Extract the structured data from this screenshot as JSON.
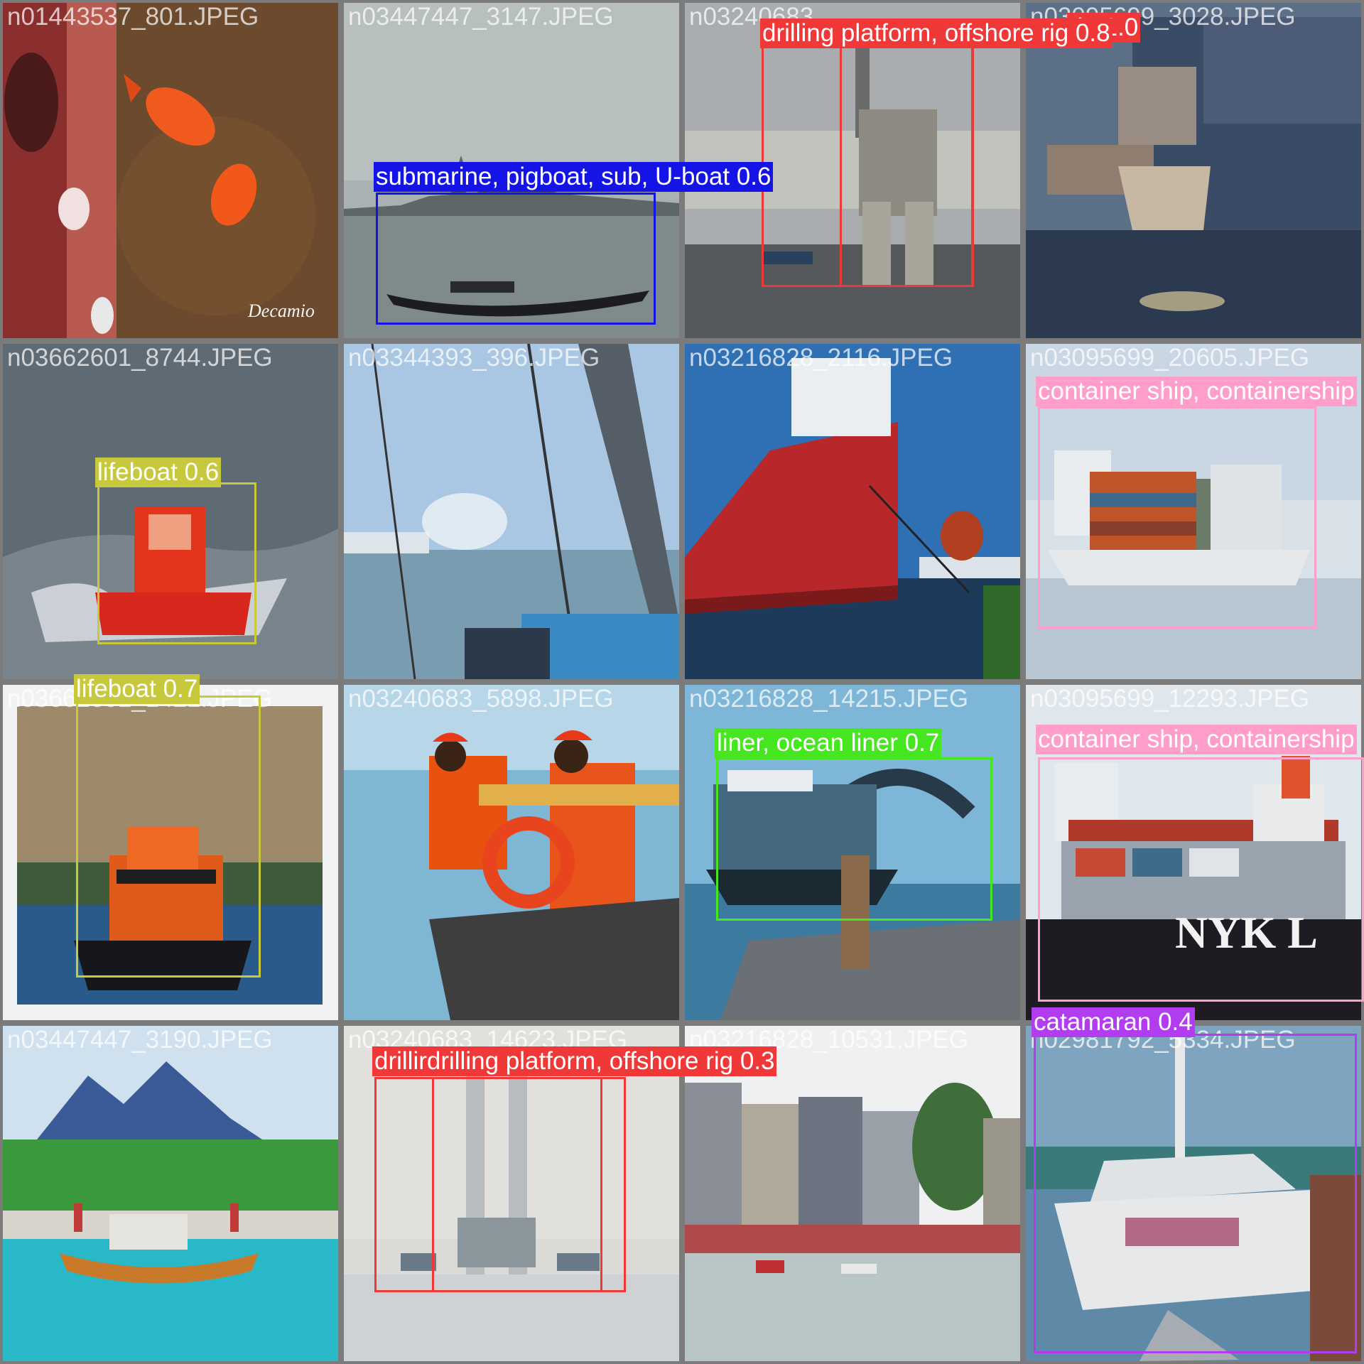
{
  "grid": {
    "tiles": [
      {
        "filename": "n01443537_801.JPEG",
        "watermark": "Decamio"
      },
      {
        "filename": "n03447447_3147.JPEG"
      },
      {
        "filename": "n03240683_..."
      },
      {
        "filename": "n03095699_3028.JPEG"
      },
      {
        "filename": "n03662601_8744.JPEG"
      },
      {
        "filename": "n03344393_396.JPEG"
      },
      {
        "filename": "n03216828_2116.JPEG"
      },
      {
        "filename": "n03095699_20605.JPEG"
      },
      {
        "filename": "n03662601_1421.JPEG"
      },
      {
        "filename": "n03240683_5898.JPEG"
      },
      {
        "filename": "n03216828_14215.JPEG"
      },
      {
        "filename": "n03095699_12293.JPEG",
        "hull_text": "NYK L"
      },
      {
        "filename": "n03447447_3190.JPEG"
      },
      {
        "filename": "n03240683_14623.JPEG"
      },
      {
        "filename": "n03216828_10531.JPEG"
      },
      {
        "filename": "n02981792_5334.JPEG"
      }
    ]
  },
  "detections": {
    "submarine": {
      "label": "submarine, pigboat, sub, U-boat 0.6",
      "color": "#1414e6"
    },
    "rig_a": {
      "label": "drilling platform, offshore rig 0.8",
      "color": "#f03838"
    },
    "rig_b": {
      "label": "rig 1.0",
      "color": "#f03838"
    },
    "lifeboat_a": {
      "label": "lifeboat 0.6",
      "color": "#c8c83c"
    },
    "container_a": {
      "label": "container ship, containership",
      "color": "#ff9ecb"
    },
    "lifeboat_b": {
      "label": "lifeboat 0.7",
      "color": "#c8c83c"
    },
    "liner": {
      "label": "liner, ocean liner 0.7",
      "color": "#46e620"
    },
    "container_b": {
      "label": "container ship, containership",
      "color": "#ff9ecb"
    },
    "catamaran": {
      "label": "catamaran 0.4",
      "color": "#b23cf0"
    },
    "rig_c": {
      "label": "drillirdrilling platform, offshore rig 0.3",
      "color": "#f03838"
    }
  }
}
